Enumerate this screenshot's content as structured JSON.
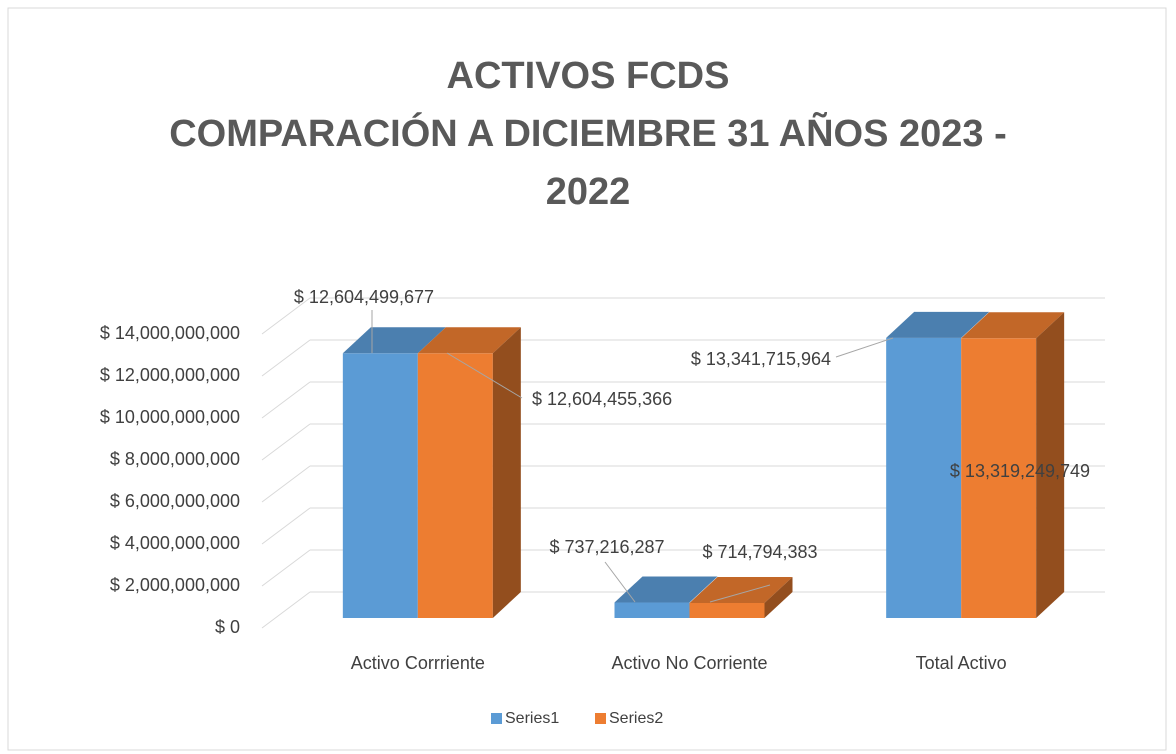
{
  "chart_data": {
    "type": "bar3d",
    "title": [
      "ACTIVOS FCDS",
      "COMPARACIÓN A DICIEMBRE 31 AÑOS 2023 -",
      "2022"
    ],
    "categories": [
      "Activo Corrriente",
      "Activo No Corriente",
      "Total  Activo"
    ],
    "series": [
      {
        "name": "Series1",
        "color": "#5b9bd5",
        "values": [
          12604499677,
          737216287,
          13341715964
        ],
        "value_labels": [
          "$ 12,604,499,677",
          "$ 737,216,287",
          "$ 13,341,715,964"
        ]
      },
      {
        "name": "Series2",
        "color": "#ed7d31",
        "values": [
          12604455366,
          714794383,
          13319249749
        ],
        "value_labels": [
          "$ 12,604,455,366",
          "$ 714,794,383",
          "$ 13,319,249,749"
        ]
      }
    ],
    "ylim": [
      0,
      14000000000
    ],
    "yticks": [
      {
        "value": 0,
        "label": "$ 0"
      },
      {
        "value": 2000000000,
        "label": "$ 2,000,000,000"
      },
      {
        "value": 4000000000,
        "label": "$ 4,000,000,000"
      },
      {
        "value": 6000000000,
        "label": "$ 6,000,000,000"
      },
      {
        "value": 8000000000,
        "label": "$ 8,000,000,000"
      },
      {
        "value": 10000000000,
        "label": "$ 10,000,000,000"
      },
      {
        "value": 12000000000,
        "label": "$ 12,000,000,000"
      },
      {
        "value": 14000000000,
        "label": "$ 14,000,000,000"
      }
    ],
    "grid": true,
    "legend": "bottom"
  }
}
